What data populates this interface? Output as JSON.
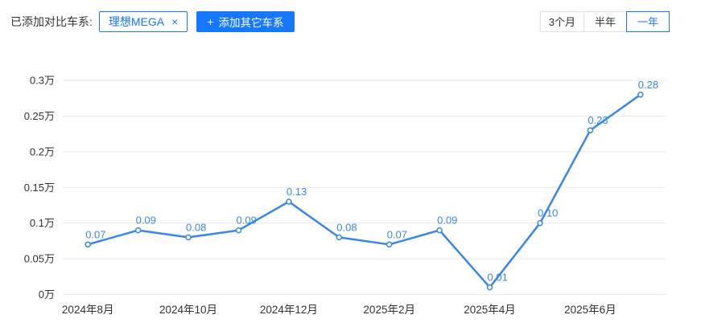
{
  "header": {
    "added_label": "已添加对比车系:",
    "series_tag": {
      "name": "理想MEGA",
      "remove_icon": "×"
    },
    "add_button": {
      "icon": "+",
      "label": "添加其它车系"
    },
    "period_buttons": [
      {
        "label": "3个月",
        "active": false
      },
      {
        "label": "半年",
        "active": false
      },
      {
        "label": "一年",
        "active": true
      }
    ]
  },
  "colors": {
    "accent_blue": "#1677ff",
    "line_blue": "#3787e6",
    "grid_line": "#e8e8e8",
    "axis_text": "#333333",
    "marker_fill": "#ffffff"
  },
  "chart_data": {
    "type": "line",
    "title": "",
    "xlabel": "",
    "ylabel": "",
    "unit": "万",
    "grid": true,
    "legend_position": "none",
    "ylim": [
      0,
      0.3
    ],
    "series": [
      {
        "name": "理想MEGA",
        "values": [
          0.07,
          0.09,
          0.08,
          0.09,
          0.13,
          0.08,
          0.07,
          0.09,
          0.01,
          0.1,
          0.23,
          0.28
        ],
        "point_labels": [
          "0.07",
          "0.09",
          "0.08",
          "0.09",
          "0.13",
          "0.08",
          "0.07",
          "0.09",
          "0.01",
          "0.10",
          "0.23",
          "0.28"
        ]
      }
    ],
    "x_tick_labels": [
      "2024年8月",
      "2024年10月",
      "2024年12月",
      "2025年2月",
      "2025年4月",
      "2025年6月"
    ],
    "x_tick_indices": [
      0,
      2,
      4,
      6,
      8,
      10
    ],
    "y_ticks": [
      {
        "value": 0,
        "label": "0万"
      },
      {
        "value": 0.05,
        "label": "0.05万"
      },
      {
        "value": 0.1,
        "label": "0.1万"
      },
      {
        "value": 0.15,
        "label": "0.15万"
      },
      {
        "value": 0.2,
        "label": "0.2万"
      },
      {
        "value": 0.25,
        "label": "0.25万"
      },
      {
        "value": 0.3,
        "label": "0.3万"
      }
    ]
  }
}
